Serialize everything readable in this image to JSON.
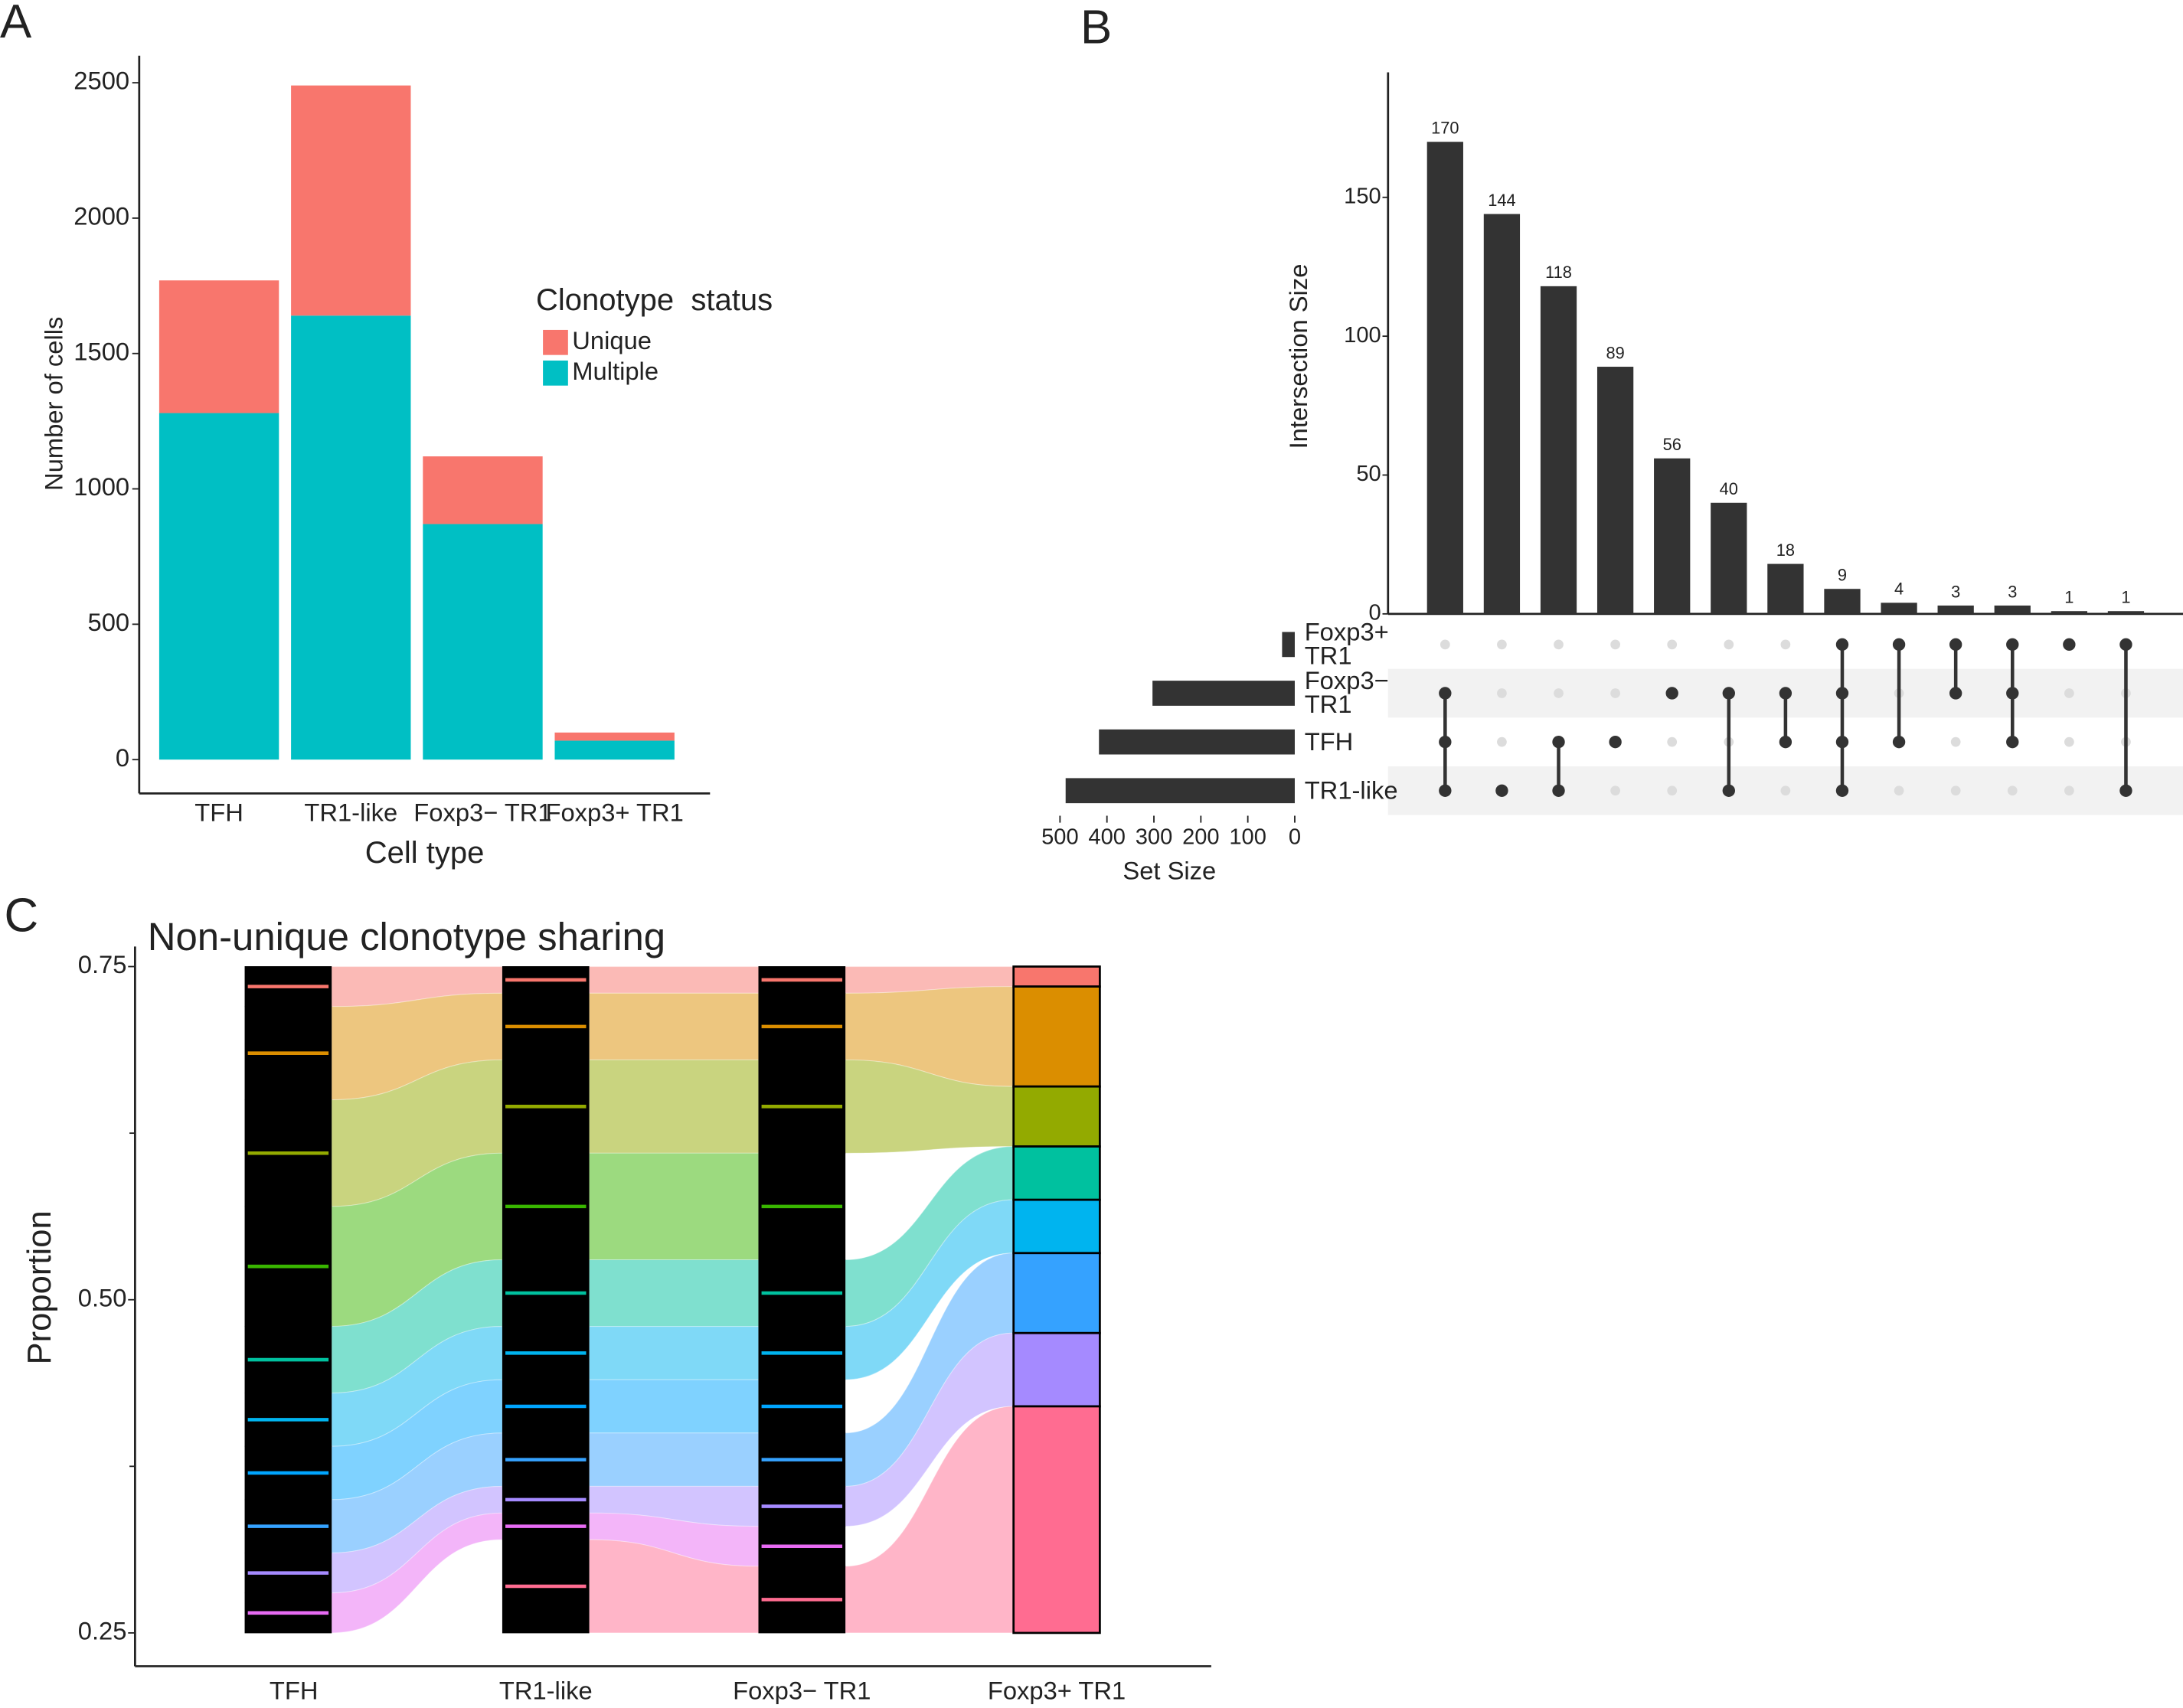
{
  "chart_data": [
    {
      "label": "A",
      "type": "bar",
      "stacked": true,
      "xlabel": "Cell type",
      "ylabel": "Number of cells",
      "categories": [
        "TFH",
        "TR1-like",
        "Foxp3− TR1",
        "Foxp3+ TR1"
      ],
      "legend_title": "Clonotype  status",
      "series": [
        {
          "name": "Unique",
          "color": "#f8766d",
          "values": [
            490,
            850,
            250,
            30
          ]
        },
        {
          "name": "Multiple",
          "color": "#00bfc4",
          "values": [
            1280,
            1640,
            870,
            70
          ]
        }
      ],
      "ylim": [
        -125,
        2600
      ],
      "yticks": [
        0,
        500,
        1000,
        1500,
        2000,
        2500
      ]
    },
    {
      "label": "B",
      "type": "upset",
      "ylabel": "Intersection Size",
      "values": [
        170,
        144,
        118,
        89,
        56,
        40,
        18,
        9,
        4,
        3,
        3,
        1,
        1
      ],
      "color": "#333333",
      "ylim": [
        0,
        195
      ],
      "yticks": [
        0,
        50,
        100,
        150
      ],
      "sets": [
        "Foxp3+\nTR1",
        "Foxp3−\nTR1",
        "TFH",
        "TR1-like"
      ],
      "set_sizes": [
        27,
        303,
        417,
        488
      ],
      "set_xlabel": "Set Size",
      "set_xlim": [
        0,
        510
      ],
      "set_xticks": [
        500,
        400,
        300,
        200,
        100,
        0
      ],
      "members": [
        [
          1,
          2,
          3
        ],
        [
          3
        ],
        [
          2,
          3
        ],
        [
          2
        ],
        [
          1
        ],
        [
          1,
          3
        ],
        [
          1,
          2
        ],
        [
          0,
          1,
          2,
          3
        ],
        [
          0,
          2
        ],
        [
          0,
          1
        ],
        [
          0,
          1,
          2
        ],
        [
          0
        ],
        [
          0,
          3
        ]
      ]
    },
    {
      "label": "C",
      "type": "alluvial",
      "title": "Non-unique clonotype sharing",
      "ylabel": "Proportion",
      "categories": [
        "TFH",
        "TR1-like",
        "Foxp3− TR1",
        "Foxp3+ TR1"
      ],
      "series": [
        {
          "color": "#f8766d",
          "values": [
            0.03,
            0.02,
            0.02,
            0.015
          ]
        },
        {
          "color": "#db8e00",
          "values": [
            0.07,
            0.05,
            0.05,
            0.075
          ]
        },
        {
          "color": "#93aa00",
          "values": [
            0.08,
            0.07,
            0.07,
            0.045
          ]
        },
        {
          "color": "#39b600",
          "values": [
            0.09,
            0.08,
            0.08,
            0
          ]
        },
        {
          "color": "#00c19f",
          "values": [
            0.05,
            0.05,
            0.05,
            0.04
          ]
        },
        {
          "color": "#00b4ef",
          "values": [
            0.04,
            0.04,
            0.04,
            0.04
          ]
        },
        {
          "color": "#00a5ff",
          "values": [
            0.04,
            0.04,
            0.04,
            0
          ]
        },
        {
          "color": "#35a2ff",
          "values": [
            0.04,
            0.04,
            0.04,
            0.06
          ]
        },
        {
          "color": "#a58aff",
          "values": [
            0.03,
            0.02,
            0.03,
            0.055
          ]
        },
        {
          "color": "#e76bf3",
          "values": [
            0.03,
            0.02,
            0.03,
            0
          ]
        },
        {
          "color": "#ff6c91",
          "values": [
            0,
            0.07,
            0.05,
            0.17
          ]
        }
      ],
      "ylim": [
        0.225,
        0.765
      ],
      "yticks": [
        0.25,
        {
          "value": 0.5,
          "label": "0.50"
        },
        0.75
      ],
      "minor_yticks": [
        0.375,
        0.625
      ]
    }
  ]
}
